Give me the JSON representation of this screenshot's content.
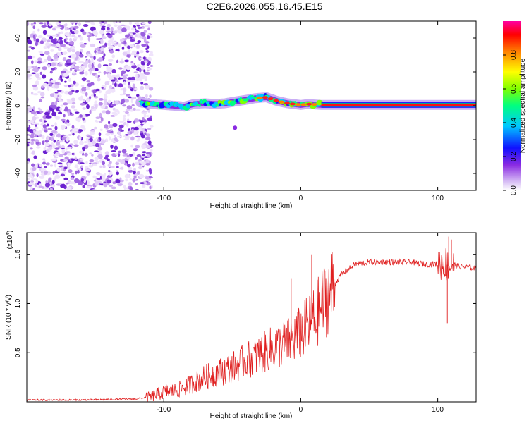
{
  "title": "C2E6.2026.055.16.45.E15",
  "chart_data": [
    {
      "type": "heatmap",
      "name": "spectrogram",
      "xlabel": "Height of straight line (km)",
      "ylabel": "Frequency (Hz)",
      "xlim": [
        -200,
        128
      ],
      "ylim": [
        -50,
        50
      ],
      "x_ticks": [
        -100,
        0,
        100
      ],
      "y_ticks": [
        -40,
        -20,
        0,
        20,
        40
      ],
      "noise_region_x": [
        -200,
        -113
      ],
      "signal_track": {
        "x": [
          -117,
          -108,
          -100,
          -92,
          -85,
          -78,
          -70,
          -62,
          -55,
          -48,
          -40,
          -33,
          -25,
          -18,
          -10,
          -5,
          0,
          5,
          10,
          15,
          25,
          50,
          75,
          100,
          128
        ],
        "freq": [
          2,
          1,
          0.5,
          0,
          -0.5,
          1,
          1.5,
          1,
          1.5,
          2.5,
          3.5,
          4.5,
          5,
          3,
          1.5,
          1,
          0.5,
          1,
          0.8,
          0.5,
          0.5,
          0.5,
          0.5,
          0.5,
          0.5
        ]
      },
      "colorbar": {
        "label": "Normalized spectral amplitude",
        "range": [
          0,
          1
        ],
        "ticks": [
          "0.0",
          "0.2",
          "0.4",
          "0.6",
          "0.8"
        ],
        "colors": [
          "#ffffff",
          "#d8bff5",
          "#8a2be2",
          "#1010ff",
          "#00c8ff",
          "#00ff80",
          "#80ff00",
          "#ffff00",
          "#ff8000",
          "#ff0000",
          "#ff00a0"
        ]
      }
    },
    {
      "type": "line",
      "name": "snr",
      "xlabel": "Height of straight line (km)",
      "ylabel": "SNR (10 * v/v)",
      "y_scale_label": "(x10",
      "y_scale_exp": "4",
      "xlim": [
        -200,
        128
      ],
      "ylim": [
        0,
        1.72
      ],
      "x_ticks": [
        -100,
        0,
        100
      ],
      "y_ticks": [
        0.5,
        1.0,
        1.5
      ],
      "y_tick_labels": [
        "0.5",
        "1.0",
        "1.5"
      ],
      "series": [
        {
          "name": "SNR",
          "color": "#e02020",
          "x": [
            -200,
            -180,
            -160,
            -140,
            -120,
            -110,
            -100,
            -90,
            -80,
            -70,
            -60,
            -50,
            -40,
            -30,
            -20,
            -10,
            0,
            10,
            20,
            30,
            40,
            50,
            60,
            70,
            80,
            90,
            100,
            105,
            108,
            110,
            115,
            120,
            128
          ],
          "y": [
            0.02,
            0.02,
            0.02,
            0.025,
            0.03,
            0.05,
            0.1,
            0.12,
            0.18,
            0.25,
            0.3,
            0.35,
            0.42,
            0.48,
            0.55,
            0.6,
            0.7,
            0.85,
            1.1,
            1.3,
            1.4,
            1.42,
            1.42,
            1.42,
            1.42,
            1.4,
            1.4,
            1.42,
            1.38,
            1.4,
            1.38,
            1.37,
            1.36
          ]
        }
      ]
    }
  ]
}
